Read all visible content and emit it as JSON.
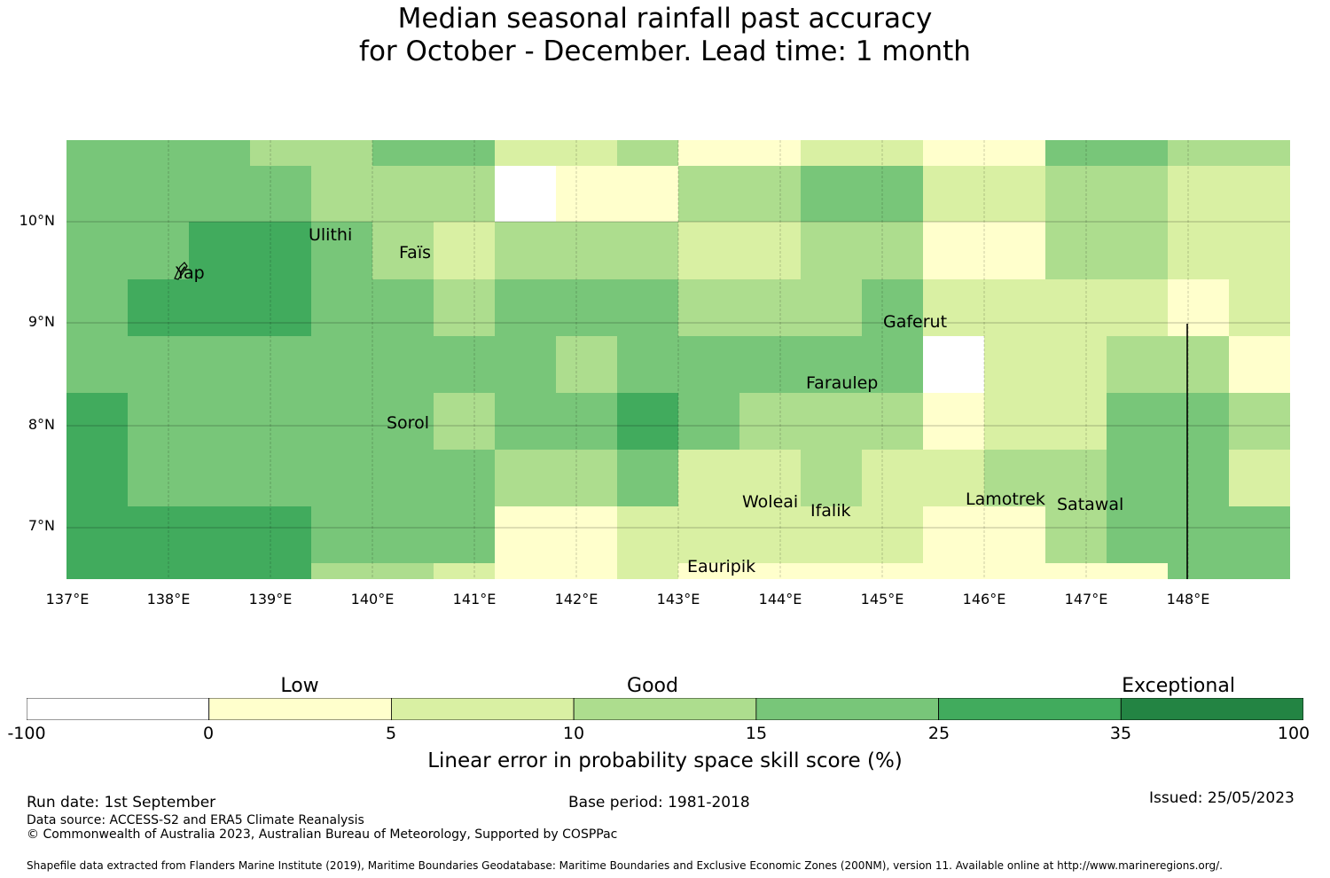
{
  "title": {
    "line1": "Median seasonal rainfall past accuracy",
    "line2": "for October - December. Lead time: 1 month"
  },
  "map": {
    "lat_labels": [
      "10°N",
      "9°N",
      "8°N",
      "7°N"
    ],
    "lon_labels": [
      "137°E",
      "138°E",
      "139°E",
      "140°E",
      "141°E",
      "142°E",
      "143°E",
      "144°E",
      "145°E",
      "146°E",
      "147°E",
      "148°E"
    ],
    "islands": [
      "Ulithi",
      "Yap",
      "Faïs",
      "Gaferut",
      "Faraulep",
      "Sorol",
      "Woleai",
      "Ifalik",
      "Lamotrek",
      "Satawal",
      "Eauripik"
    ]
  },
  "colorbar": {
    "categories": [
      "Low",
      "Good",
      "Exceptional"
    ],
    "ticks": [
      "-100",
      "0",
      "5",
      "10",
      "15",
      "25",
      "35",
      "100"
    ],
    "colors": [
      "#ffffff",
      "#ffffcc",
      "#d9f0a3",
      "#addd8e",
      "#78c679",
      "#41ab5d",
      "#238443"
    ],
    "title": "Linear error in probability space skill score (%)"
  },
  "footer": {
    "run_date": "Run date: 1st September",
    "base_period": "Base period: 1981-2018",
    "issued": "Issued: 25/05/2023",
    "data_source": "Data source: ACCESS-S2 and ERA5 Climate Reanalysis",
    "copyright": "© Commonwealth of Australia 2023, Australian Bureau of Meteorology, Supported by COSPPac",
    "shapefile": "Shapefile data extracted from Flanders Marine Institute (2019), Maritime Boundaries Geodatabase: Maritime Boundaries and Exclusive Economic Zones (200NM), version 11. Available online at http://www.marineregions.org/."
  },
  "grid_levels": {
    "rows": [
      [
        4,
        4,
        4,
        3,
        3,
        4,
        4,
        2,
        2,
        3,
        1,
        1,
        2,
        2,
        1,
        1,
        4,
        4,
        3,
        3
      ],
      [
        4,
        4,
        4,
        4,
        3,
        3,
        3,
        0,
        1,
        1,
        3,
        3,
        4,
        4,
        2,
        2,
        3,
        3,
        2,
        2
      ],
      [
        4,
        4,
        5,
        5,
        4,
        3,
        2,
        3,
        3,
        3,
        2,
        2,
        3,
        3,
        1,
        1,
        3,
        3,
        2,
        2
      ],
      [
        4,
        5,
        5,
        5,
        4,
        4,
        3,
        4,
        4,
        4,
        3,
        3,
        3,
        4,
        2,
        2,
        2,
        2,
        1,
        2
      ],
      [
        4,
        4,
        4,
        4,
        4,
        4,
        4,
        4,
        3,
        4,
        4,
        4,
        4,
        4,
        0,
        2,
        2,
        3,
        3,
        1
      ],
      [
        5,
        4,
        4,
        4,
        4,
        4,
        3,
        4,
        4,
        5,
        4,
        3,
        3,
        3,
        1,
        2,
        2,
        4,
        4,
        3
      ],
      [
        5,
        4,
        4,
        4,
        4,
        4,
        4,
        3,
        3,
        4,
        2,
        2,
        3,
        2,
        2,
        3,
        3,
        4,
        4,
        2
      ],
      [
        5,
        5,
        5,
        5,
        4,
        4,
        4,
        1,
        1,
        2,
        2,
        2,
        2,
        2,
        1,
        1,
        3,
        4,
        4,
        4
      ],
      [
        5,
        5,
        5,
        5,
        3,
        3,
        2,
        1,
        1,
        2,
        1,
        1,
        1,
        1,
        1,
        1,
        1,
        1,
        4,
        4
      ]
    ]
  }
}
